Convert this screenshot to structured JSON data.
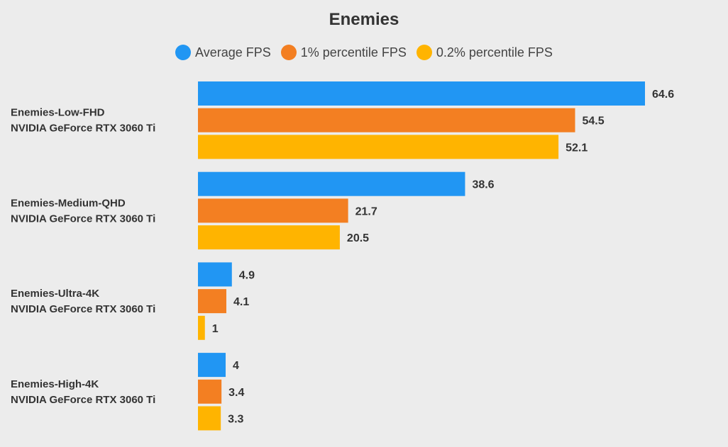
{
  "chart_data": {
    "type": "bar",
    "orientation": "horizontal",
    "title": "Enemies",
    "categories": [
      [
        "Enemies-Low-FHD",
        "NVIDIA GeForce RTX 3060 Ti"
      ],
      [
        "Enemies-Medium-QHD",
        "NVIDIA GeForce RTX 3060 Ti"
      ],
      [
        "Enemies-Ultra-4K",
        "NVIDIA GeForce RTX 3060 Ti"
      ],
      [
        "Enemies-High-4K",
        "NVIDIA GeForce RTX 3060 Ti"
      ]
    ],
    "series": [
      {
        "name": "Average FPS",
        "color": "#2196f3",
        "values": [
          64.6,
          38.6,
          4.9,
          4
        ]
      },
      {
        "name": "1% percentile FPS",
        "color": "#f37f22",
        "values": [
          54.5,
          21.7,
          4.1,
          3.4
        ]
      },
      {
        "name": "0.2% percentile FPS",
        "color": "#ffb400",
        "values": [
          52.1,
          20.5,
          1,
          3.3
        ]
      }
    ],
    "xlim": [
      0,
      64.6
    ],
    "grid": false,
    "legend": "top",
    "data_labels": true
  }
}
